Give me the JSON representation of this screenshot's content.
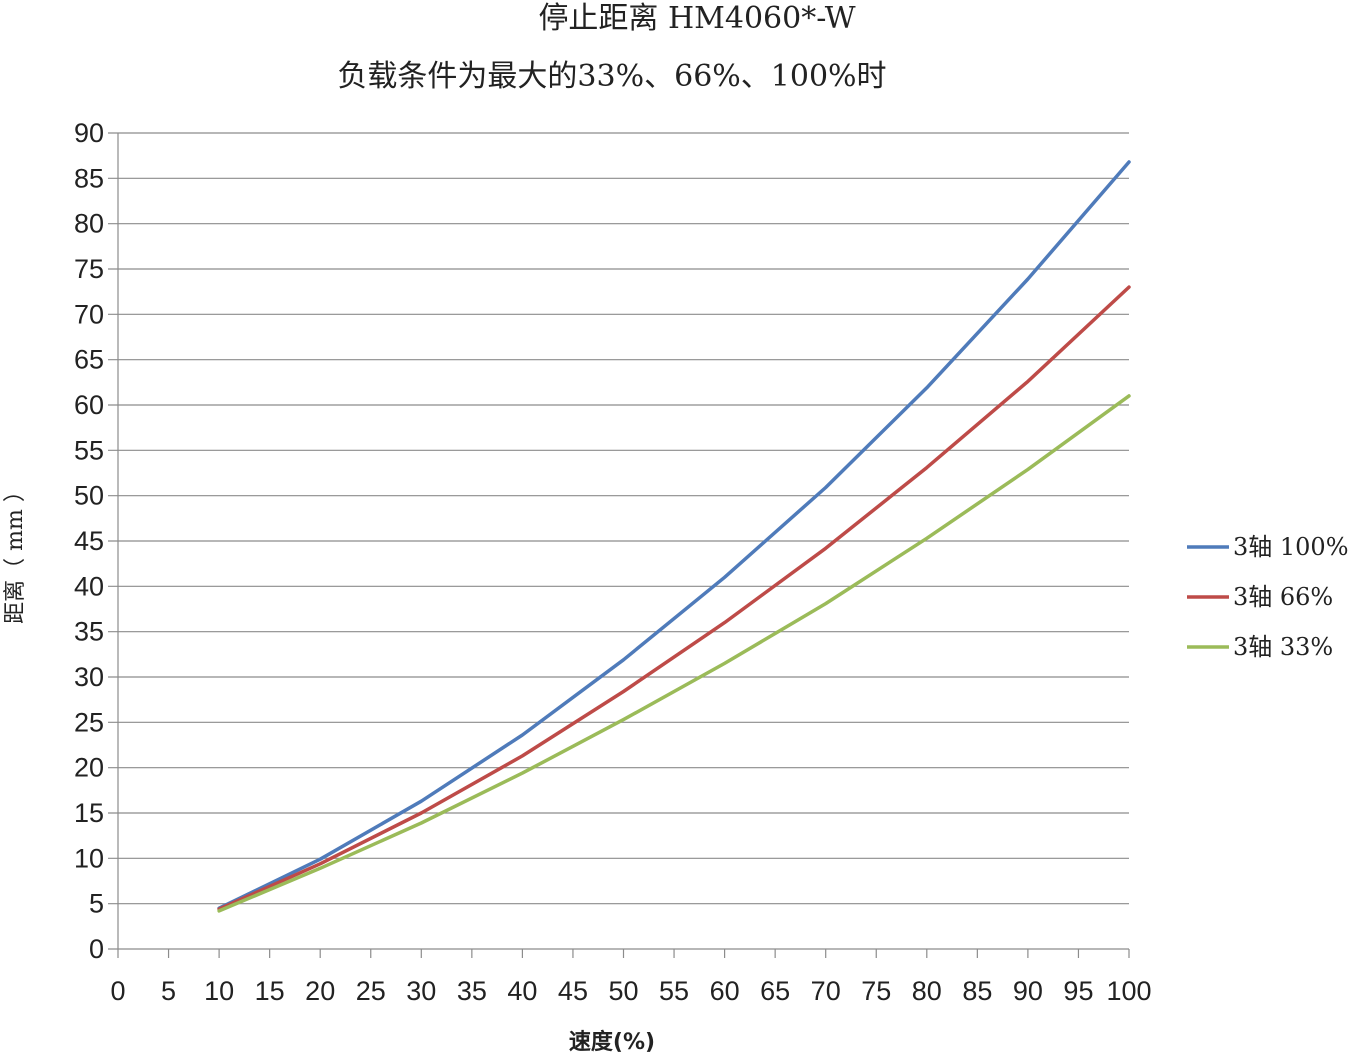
{
  "chart_data": {
    "type": "line",
    "title": "停止距离 HM4060*-W",
    "subtitle": "负载条件为最大的33%、66%、100%时",
    "xlabel": "速度(%)",
    "ylabel": "距离（ mm ）",
    "xlim": [
      0,
      100
    ],
    "ylim": [
      0,
      90
    ],
    "x_ticks": [
      0,
      5,
      10,
      15,
      20,
      25,
      30,
      35,
      40,
      45,
      50,
      55,
      60,
      65,
      70,
      75,
      80,
      85,
      90,
      95,
      100
    ],
    "y_ticks": [
      0,
      5,
      10,
      15,
      20,
      25,
      30,
      35,
      40,
      45,
      50,
      55,
      60,
      65,
      70,
      75,
      80,
      85,
      90
    ],
    "grid": "horizontal",
    "legend_position": "right",
    "x": [
      10,
      20,
      30,
      40,
      50,
      60,
      70,
      80,
      90,
      100
    ],
    "series": [
      {
        "name": "3轴 100%",
        "color": "#4F7BBA",
        "values": [
          4.5,
          9.9,
          16.3,
          23.6,
          31.9,
          41.0,
          50.9,
          61.9,
          73.9,
          86.8
        ]
      },
      {
        "name": "3轴 66%",
        "color": "#BE4B48",
        "values": [
          4.4,
          9.4,
          15.0,
          21.3,
          28.4,
          36.0,
          44.2,
          53.1,
          62.6,
          73.0
        ]
      },
      {
        "name": "3轴 33%",
        "color": "#9BBB59",
        "values": [
          4.2,
          8.9,
          13.9,
          19.4,
          25.3,
          31.5,
          38.1,
          45.3,
          52.9,
          61.0
        ]
      }
    ]
  }
}
